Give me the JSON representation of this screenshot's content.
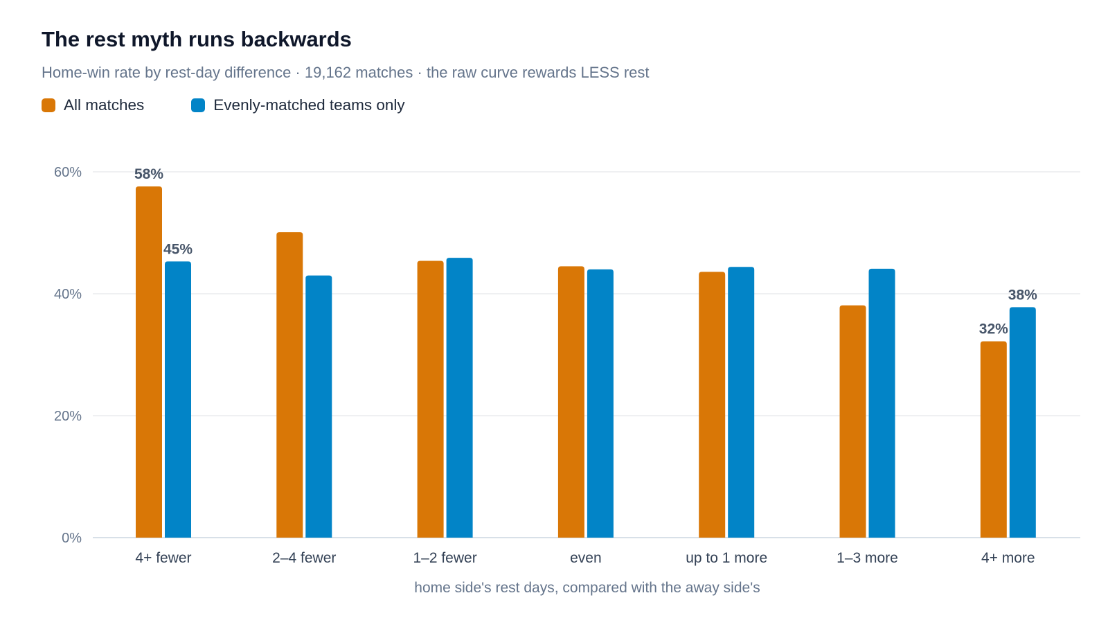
{
  "title": "The rest myth runs backwards",
  "subtitle": "Home-win rate by rest-day difference · 19,162 matches · the raw curve rewards LESS rest",
  "colors": {
    "all": "#d97706",
    "even": "#0284c7",
    "grid": "#e5e7eb",
    "axis_text": "#64748b",
    "label_text": "#475569"
  },
  "chart_data": {
    "type": "bar",
    "title": "The rest myth runs backwards",
    "subtitle": "Home-win rate by rest-day difference · 19,162 matches · the raw curve rewards LESS rest",
    "xlabel": "home side's rest days, compared with the away side's",
    "ylabel": "",
    "ylim": [
      0,
      60
    ],
    "yticks": [
      0,
      20,
      40,
      60
    ],
    "ytick_labels": [
      "0%",
      "20%",
      "40%",
      "60%"
    ],
    "grid": true,
    "legend_position": "top-left",
    "categories": [
      "4+ fewer",
      "2–4 fewer",
      "1–2 fewer",
      "even",
      "up to 1 more",
      "1–3 more",
      "4+ more"
    ],
    "series": [
      {
        "name": "All matches",
        "color": "#d97706",
        "values": [
          57.6,
          50.1,
          45.4,
          44.5,
          43.6,
          38.1,
          32.2
        ],
        "data_labels": [
          "58%",
          null,
          null,
          null,
          null,
          null,
          "32%"
        ]
      },
      {
        "name": "Evenly-matched teams only",
        "color": "#0284c7",
        "values": [
          45.3,
          43.0,
          45.9,
          44.0,
          44.4,
          44.1,
          37.8
        ],
        "data_labels": [
          "45%",
          null,
          null,
          null,
          null,
          null,
          "38%"
        ]
      }
    ]
  }
}
